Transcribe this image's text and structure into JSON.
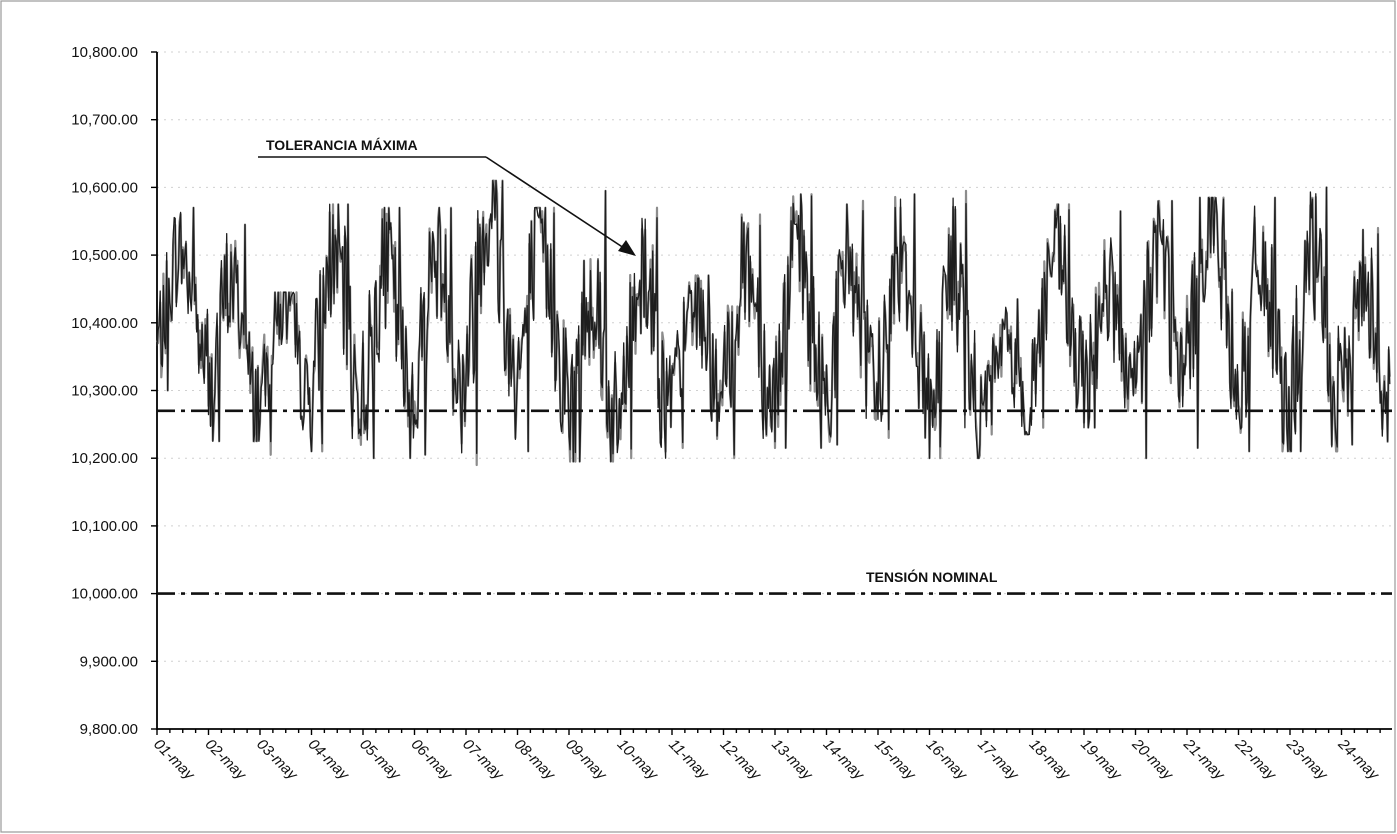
{
  "chart_data": {
    "type": "line",
    "title": "",
    "xlabel": "",
    "ylabel": "",
    "ylim": [
      9800,
      10800
    ],
    "y_ticks": [
      "10,800.00",
      "10,700.00",
      "10,600.00",
      "10,500.00",
      "10,400.00",
      "10,300.00",
      "10,200.00",
      "10,100.00",
      "10,000.00",
      "9,900.00",
      "9,800.00"
    ],
    "y_tick_values": [
      10800,
      10700,
      10600,
      10500,
      10400,
      10300,
      10200,
      10100,
      10000,
      9900,
      9800
    ],
    "categories": [
      "01-may",
      "02-may",
      "03-may",
      "04-may",
      "05-may",
      "06-may",
      "07-may",
      "08-may",
      "09-may",
      "10-may",
      "11-may",
      "12-may",
      "13-may",
      "14-may",
      "15-may",
      "16-may",
      "17-may",
      "18-may",
      "19-may",
      "20-may",
      "21-may",
      "22-may",
      "23-may",
      "24-may"
    ],
    "reference_lines": [
      {
        "name": "TOLERANCIA MÁXIMA",
        "value": 10270
      },
      {
        "name": "TENSIÓN NOMINAL",
        "value": 10000
      }
    ],
    "series": [
      {
        "daily_max": [
          10570,
          10545,
          10445,
          10575,
          10570,
          10570,
          10610,
          10570,
          10595,
          10570,
          10470,
          10560,
          10590,
          10580,
          10590,
          10595,
          10435,
          10575,
          10565,
          10580,
          10585,
          10585,
          10600,
          10540
        ],
        "daily_min": [
          10300,
          10225,
          10205,
          10210,
          10200,
          10205,
          10190,
          10210,
          10195,
          10200,
          10215,
          10200,
          10215,
          10220,
          10230,
          10200,
          10235,
          10245,
          10245,
          10200,
          10215,
          10210,
          10210,
          10220
        ],
        "daily_mean": [
          10430,
          10370,
          10360,
          10400,
          10390,
          10400,
          10460,
          10420,
          10340,
          10380,
          10360,
          10390,
          10400,
          10390,
          10410,
          10370,
          10320,
          10410,
          10370,
          10410,
          10460,
          10380,
          10380,
          10370
        ]
      }
    ],
    "grid": true,
    "gridlines": "dotted horizontal"
  },
  "annotations": {
    "max_label": "TOLERANCIA MÁXIMA",
    "nominal_label": "TENSIÓN NOMINAL"
  }
}
